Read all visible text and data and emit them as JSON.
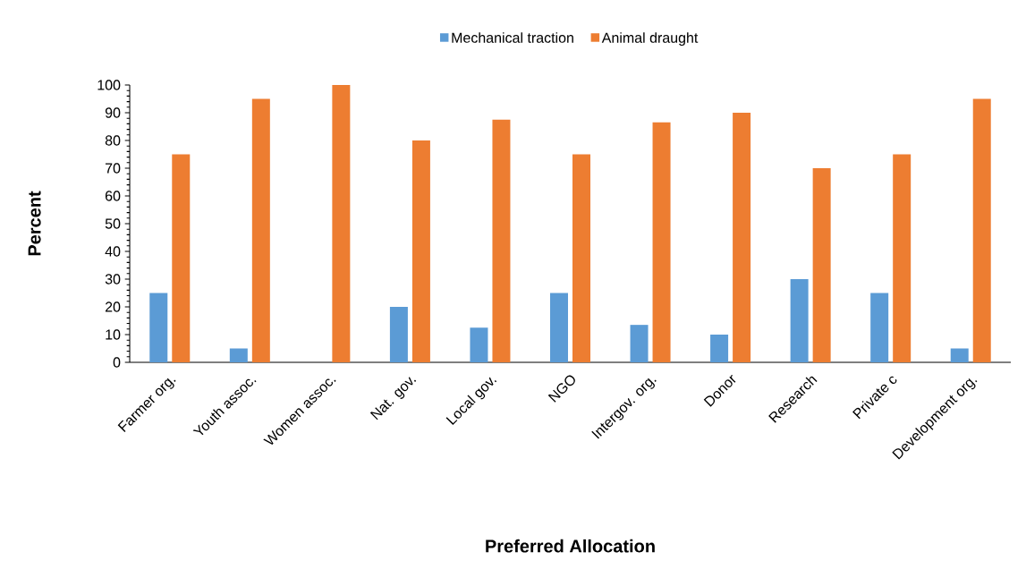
{
  "chart_data": {
    "type": "bar",
    "xlabel": "Preferred Allocation",
    "ylabel": "Percent",
    "categories": [
      "Farmer org.",
      "Youth assoc.",
      "Women assoc.",
      "Nat. gov.",
      "Local gov.",
      "NGO",
      "Intergov. org.",
      "Donor",
      "Research",
      "Private c",
      "Development org."
    ],
    "series": [
      {
        "name": "Mechanical traction",
        "color": "#5b9bd5",
        "values": [
          25,
          5,
          0,
          20,
          12.5,
          25,
          13.5,
          10,
          30,
          25,
          5
        ]
      },
      {
        "name": "Animal draught",
        "color": "#ed7d31",
        "values": [
          75,
          95,
          100,
          80,
          87.5,
          75,
          86.5,
          90,
          70,
          75,
          95
        ]
      }
    ],
    "ylim": [
      0,
      100
    ],
    "yticks": [
      0,
      10,
      20,
      30,
      40,
      50,
      60,
      70,
      80,
      90,
      100
    ],
    "legend": "top"
  }
}
